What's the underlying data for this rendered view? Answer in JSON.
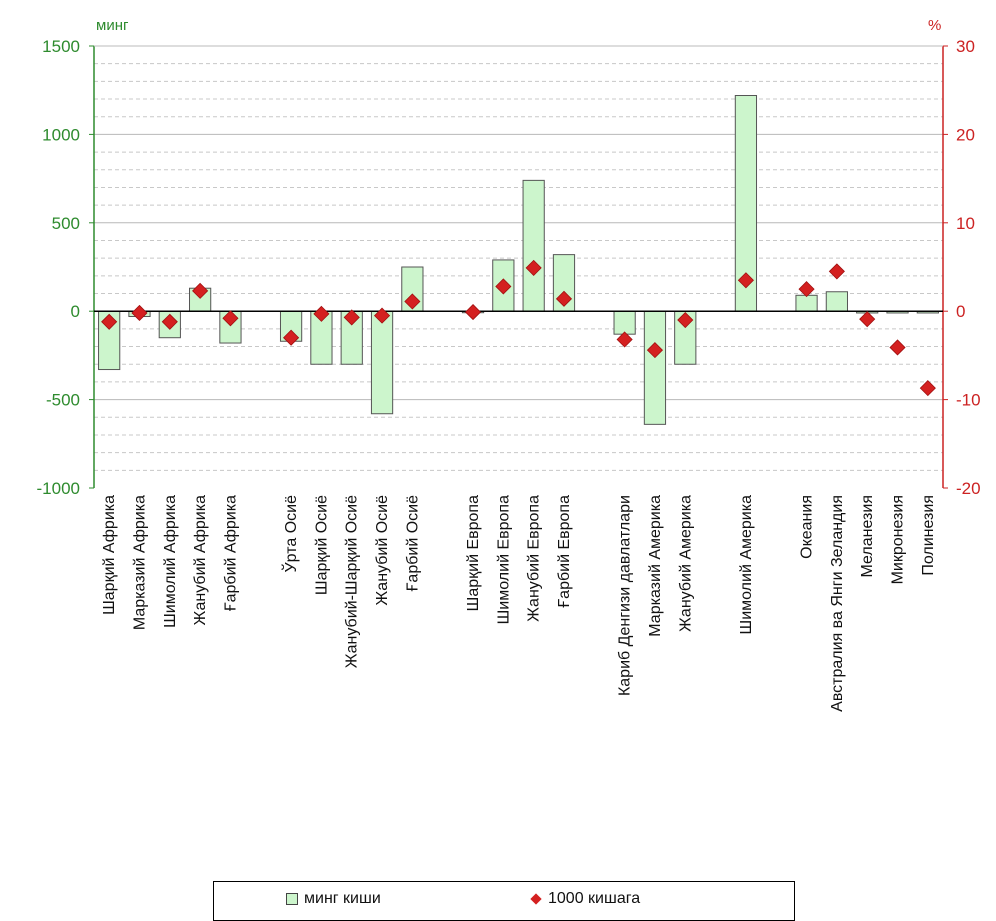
{
  "chart_data": {
    "type": "bar",
    "left_axis": {
      "unit": "минг",
      "ylim": [
        -1000,
        1500
      ],
      "ticks": [
        -1000,
        -500,
        0,
        500,
        1000,
        1500
      ]
    },
    "right_axis": {
      "unit": "%",
      "ylim": [
        -20,
        30
      ],
      "ticks": [
        -20,
        -10,
        0,
        10,
        20,
        30
      ]
    },
    "categories": [
      "Шарқий Африка",
      "Марказий Африка",
      "Шимолий Африка",
      "Жанубий Африка",
      "Ғарбий Африка",
      "",
      "Ўрта Осиё",
      "Шарқий Осиё",
      "Жанубий-Шарқий Осиё",
      "Жанубий Осиё",
      "Ғарбий Осиё",
      "",
      "Шарқий Европа",
      "Шимолий Европа",
      "Жанубий Европа",
      "Ғарбий Европа",
      "",
      "Кариб Денгизи давлатлари",
      "Марказий Америка",
      "Жанубий Америка",
      "",
      "Шимолий Америка",
      "",
      "Океания",
      "Австралия ва Янги Зеландия",
      "Меланезия",
      "Микронезия",
      "Полинезия"
    ],
    "series": [
      {
        "name": "минг киши",
        "axis": "left",
        "values": [
          -330,
          -30,
          -150,
          130,
          -180,
          null,
          -170,
          -300,
          -300,
          -580,
          250,
          null,
          0,
          290,
          740,
          320,
          null,
          -130,
          -640,
          -300,
          null,
          1220,
          null,
          90,
          110,
          -10,
          -10,
          -10
        ]
      },
      {
        "name": "1000 кишага",
        "axis": "right",
        "values": [
          -1.2,
          -0.2,
          -1.2,
          2.3,
          -0.8,
          null,
          -3.0,
          -0.3,
          -0.7,
          -0.5,
          1.1,
          null,
          -0.1,
          2.8,
          4.9,
          1.4,
          null,
          -3.2,
          -4.4,
          -1.0,
          null,
          3.5,
          null,
          2.5,
          4.5,
          -0.9,
          -4.1,
          -8.7
        ]
      }
    ],
    "grid": true,
    "legend": "bottom"
  }
}
